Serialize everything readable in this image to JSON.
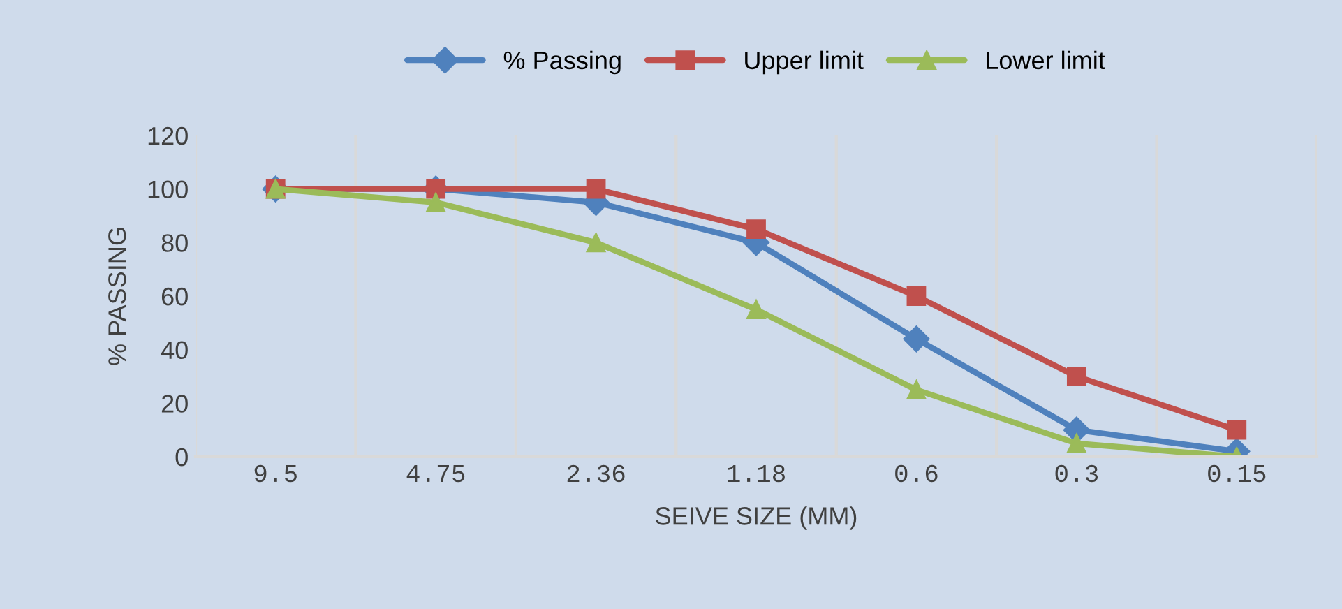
{
  "chart_data": {
    "type": "line",
    "xlabel": "SEIVE SIZE (MM)",
    "ylabel": "% PASSING",
    "categories": [
      "9.5",
      "4.75",
      "2.36",
      "1.18",
      "0.6",
      "0.3",
      "0.15"
    ],
    "series": [
      {
        "name": "% Passing",
        "color": "#4f81bd",
        "marker": "diamond",
        "values": [
          100,
          100,
          95,
          80,
          44,
          10,
          2
        ]
      },
      {
        "name": "Upper limit",
        "color": "#c0504d",
        "marker": "square",
        "values": [
          100,
          100,
          100,
          85,
          60,
          30,
          10
        ]
      },
      {
        "name": "Lower limit",
        "color": "#9bbb59",
        "marker": "triangle",
        "values": [
          100,
          95,
          80,
          55,
          25,
          5,
          0
        ]
      }
    ],
    "ylim": [
      0,
      120
    ],
    "yticks": [
      0,
      20,
      40,
      60,
      80,
      100,
      120
    ],
    "grid": "x",
    "legend": "top",
    "line_style": "solid"
  }
}
